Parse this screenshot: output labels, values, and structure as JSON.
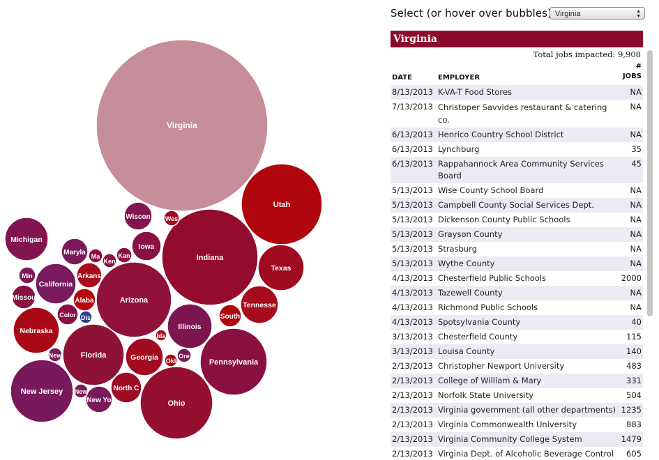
{
  "selector": {
    "label": "Select (or hover over bubbles):",
    "selected": "Virginia"
  },
  "panel": {
    "title": "Virginia",
    "total": "Total jobs impacted: 9,908",
    "headers": {
      "date": "DATE",
      "employer": "EMPLOYER",
      "jobs_top": "#",
      "jobs_bottom": "JOBS"
    },
    "rows": [
      {
        "date": "8/13/2013",
        "employer": "K-VA-T Food Stores",
        "jobs": "NA"
      },
      {
        "date": "7/13/2013",
        "employer": "Christoper Savvides restaurant & catering co.",
        "jobs": "NA"
      },
      {
        "date": "6/13/2013",
        "employer": "Henrico Country School District",
        "jobs": "NA"
      },
      {
        "date": "6/13/2013",
        "employer": "Lynchburg",
        "jobs": "35"
      },
      {
        "date": "6/13/2013",
        "employer": "Rappahannock Area Community Services Board",
        "jobs": "45"
      },
      {
        "date": "5/13/2013",
        "employer": "Wise County School Board",
        "jobs": "NA"
      },
      {
        "date": "5/13/2013",
        "employer": "Campbell County Social Services Dept.",
        "jobs": "NA"
      },
      {
        "date": "5/13/2013",
        "employer": "Dickenson County Public Schools",
        "jobs": "NA"
      },
      {
        "date": "5/13/2013",
        "employer": "Grayson County",
        "jobs": "NA"
      },
      {
        "date": "5/13/2013",
        "employer": "Strasburg",
        "jobs": "NA"
      },
      {
        "date": "5/13/2013",
        "employer": "Wythe County",
        "jobs": "NA"
      },
      {
        "date": "4/13/2013",
        "employer": "Chesterfield Public Schools",
        "jobs": "2000"
      },
      {
        "date": "4/13/2013",
        "employer": "Tazewell County",
        "jobs": "NA"
      },
      {
        "date": "4/13/2013",
        "employer": "Richmond Public Schools",
        "jobs": "NA"
      },
      {
        "date": "4/13/2013",
        "employer": "Spotsylvania County",
        "jobs": "40"
      },
      {
        "date": "3/13/2013",
        "employer": "Chesterfield County",
        "jobs": "115"
      },
      {
        "date": "3/13/2013",
        "employer": "Louisa County",
        "jobs": "140"
      },
      {
        "date": "2/13/2013",
        "employer": "Christopher Newport University",
        "jobs": "483"
      },
      {
        "date": "2/13/2013",
        "employer": "College of William & Mary",
        "jobs": "331"
      },
      {
        "date": "2/13/2013",
        "employer": "Norfolk State University",
        "jobs": "504"
      },
      {
        "date": "2/13/2013",
        "employer": "Virginia government (all other departments)",
        "jobs": "1235"
      },
      {
        "date": "2/13/2013",
        "employer": "Virginia Commonwealth University",
        "jobs": "883"
      },
      {
        "date": "2/13/2013",
        "employer": "Virginia Community College System",
        "jobs": "1479"
      },
      {
        "date": "2/13/2013",
        "employer": "Virginia Dept. of Alcoholic Beverage Control",
        "jobs": "605"
      }
    ]
  },
  "bubbles": [
    {
      "label": "Virginia",
      "color": "#c68d9b"
    },
    {
      "label": "Utah",
      "color": "#b0070f"
    },
    {
      "label": "Indiana",
      "color": "#940c2d"
    },
    {
      "label": "Texas",
      "color": "#a10b22"
    },
    {
      "label": "Tennesse",
      "color": "#a70b1e"
    },
    {
      "label": "South",
      "color": "#b0070f"
    },
    {
      "label": "Illinois",
      "color": "#7d1650"
    },
    {
      "label": "Pennsylvania",
      "color": "#8a1040"
    },
    {
      "label": "Ohio",
      "color": "#95102f"
    },
    {
      "label": "Arizona",
      "color": "#90113a"
    },
    {
      "label": "Florida",
      "color": "#8e1238"
    },
    {
      "label": "Georgia",
      "color": "#a30b20"
    },
    {
      "label": "Ida",
      "color": "#a80b1a"
    },
    {
      "label": "Okl",
      "color": "#a80b1a"
    },
    {
      "label": "Ore",
      "color": "#7a1655"
    },
    {
      "label": "North C",
      "color": "#a00b24"
    },
    {
      "label": "New Yo",
      "color": "#7a1a5a"
    },
    {
      "label": "New",
      "color": "#7c1a58"
    },
    {
      "label": "New",
      "color": "#7c1a58"
    },
    {
      "label": "New Jersey",
      "color": "#78195c"
    },
    {
      "label": "Nebraska",
      "color": "#a90a16"
    },
    {
      "label": "Missou",
      "color": "#8a1043"
    },
    {
      "label": "Min",
      "color": "#7b1758"
    },
    {
      "label": "California",
      "color": "#771a5e"
    },
    {
      "label": "Michigan",
      "color": "#82154f"
    },
    {
      "label": "Maryla",
      "color": "#7a1a5a"
    },
    {
      "label": "Ma",
      "color": "#8c1040"
    },
    {
      "label": "Arkans",
      "color": "#a70b1c"
    },
    {
      "label": "Alaba",
      "color": "#b5070c"
    },
    {
      "label": "Dis",
      "color": "#2e3e8c"
    },
    {
      "label": "Color",
      "color": "#8a1043"
    },
    {
      "label": "Ken",
      "color": "#8c1040"
    },
    {
      "label": "Kan",
      "color": "#8a1043"
    },
    {
      "label": "Iowa",
      "color": "#8a1043"
    },
    {
      "label": "Wiscon",
      "color": "#82154f"
    },
    {
      "label": "Wes",
      "color": "#a00b24"
    }
  ]
}
